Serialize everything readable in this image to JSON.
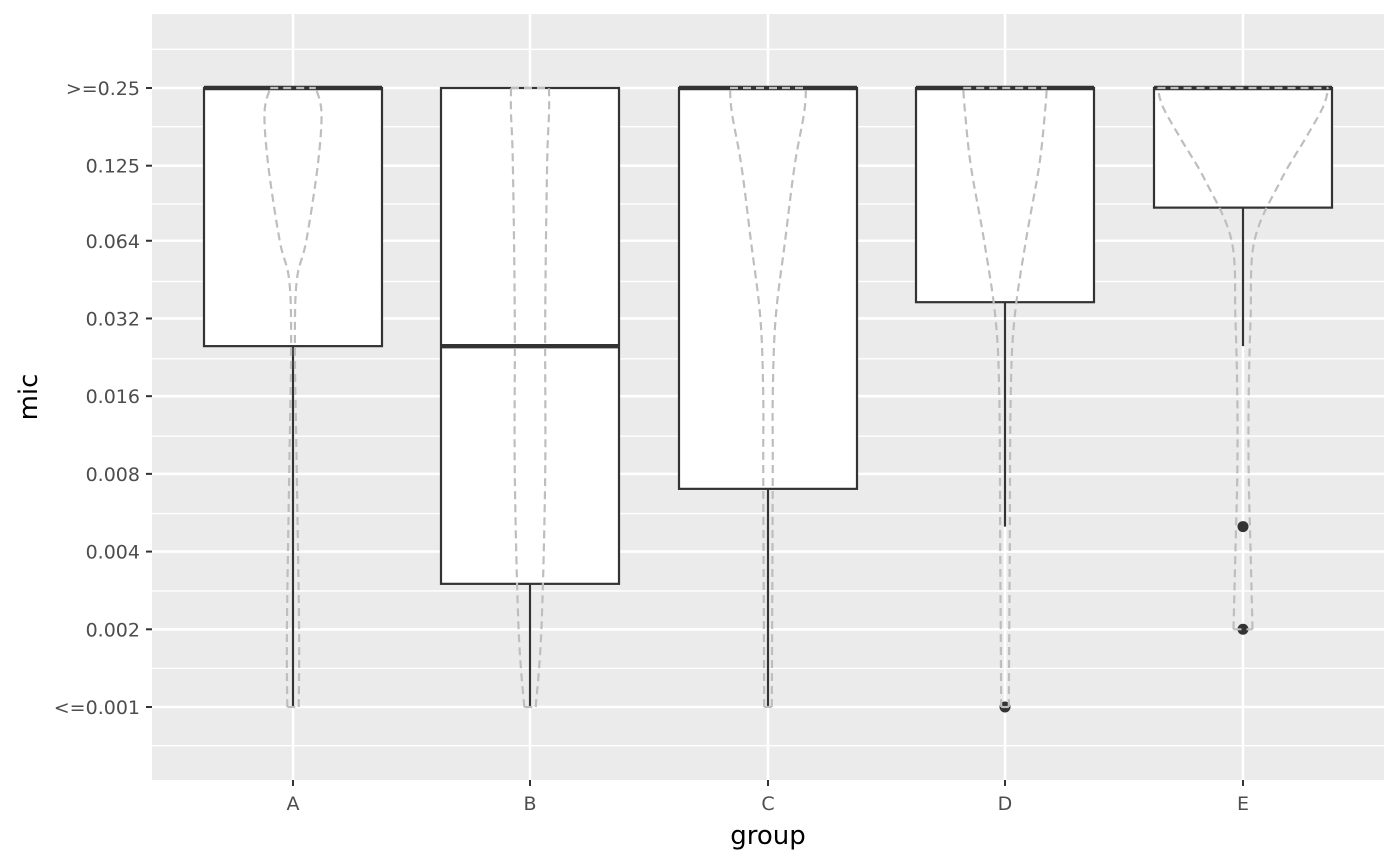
{
  "chart_data": {
    "type": "boxplot",
    "xlabel": "group",
    "ylabel": "mic",
    "categories": [
      "A",
      "B",
      "C",
      "D",
      "E"
    ],
    "y_tick_labels": [
      "<=0.001",
      "0.002",
      "0.004",
      "0.008",
      "0.016",
      "0.032",
      "0.064",
      "0.125",
      ">=0.25"
    ],
    "y_scale": "log2",
    "y_tick_values": [
      0.001,
      0.002,
      0.004,
      0.008,
      0.016,
      0.032,
      0.064,
      0.125,
      0.25
    ],
    "ylim": [
      0.0006,
      0.5
    ],
    "grid": true,
    "boxes": [
      {
        "group": "A",
        "lower_whisker": 0.001,
        "q1": 0.025,
        "median": 0.25,
        "q3": 0.25,
        "upper_whisker": 0.25,
        "outliers": []
      },
      {
        "group": "B",
        "lower_whisker": 0.001,
        "q1": 0.003,
        "median": 0.025,
        "q3": 0.25,
        "upper_whisker": 0.25,
        "outliers": []
      },
      {
        "group": "C",
        "lower_whisker": 0.001,
        "q1": 0.007,
        "median": 0.25,
        "q3": 0.25,
        "upper_whisker": 0.25,
        "outliers": []
      },
      {
        "group": "D",
        "lower_whisker": 0.005,
        "q1": 0.037,
        "median": 0.25,
        "q3": 0.25,
        "upper_whisker": 0.25,
        "outliers": [
          0.001
        ]
      },
      {
        "group": "E",
        "lower_whisker": 0.025,
        "q1": 0.086,
        "median": 0.25,
        "q3": 0.25,
        "upper_whisker": 0.25,
        "outliers": [
          0.005,
          0.002
        ]
      }
    ],
    "violins": [
      {
        "group": "A",
        "profile": [
          [
            0.001,
            0.03
          ],
          [
            0.002,
            0.032
          ],
          [
            0.008,
            0.02
          ],
          [
            0.025,
            0.01
          ],
          [
            0.045,
            0.02
          ],
          [
            0.064,
            0.07
          ],
          [
            0.125,
            0.13
          ],
          [
            0.2,
            0.15
          ],
          [
            0.25,
            0.12
          ]
        ]
      },
      {
        "group": "B",
        "profile": [
          [
            0.001,
            0.03
          ],
          [
            0.002,
            0.06
          ],
          [
            0.008,
            0.08
          ],
          [
            0.032,
            0.08
          ],
          [
            0.125,
            0.09
          ],
          [
            0.2,
            0.1
          ],
          [
            0.25,
            0.1
          ]
        ]
      },
      {
        "group": "C",
        "profile": [
          [
            0.001,
            0.02
          ],
          [
            0.008,
            0.025
          ],
          [
            0.016,
            0.025
          ],
          [
            0.032,
            0.04
          ],
          [
            0.064,
            0.09
          ],
          [
            0.125,
            0.14
          ],
          [
            0.2,
            0.19
          ],
          [
            0.25,
            0.2
          ]
        ]
      },
      {
        "group": "D",
        "profile": [
          [
            0.001,
            0.02
          ],
          [
            0.004,
            0.025
          ],
          [
            0.016,
            0.03
          ],
          [
            0.032,
            0.05
          ],
          [
            0.064,
            0.11
          ],
          [
            0.125,
            0.18
          ],
          [
            0.2,
            0.21
          ],
          [
            0.25,
            0.22
          ]
        ]
      },
      {
        "group": "E",
        "profile": [
          [
            0.002,
            0.05
          ],
          [
            0.004,
            0.04
          ],
          [
            0.008,
            0.03
          ],
          [
            0.016,
            0.03
          ],
          [
            0.032,
            0.04
          ],
          [
            0.064,
            0.06
          ],
          [
            0.11,
            0.2
          ],
          [
            0.16,
            0.33
          ],
          [
            0.21,
            0.42
          ],
          [
            0.25,
            0.45
          ]
        ]
      }
    ],
    "colors": {
      "panel_background": "#ebebeb",
      "grid": "#ffffff",
      "box_fill": "#ffffff",
      "box_line": "#333333",
      "violin_line": "#bebebe",
      "tick_text": "#4d4d4d",
      "axis_title": "#000000"
    }
  }
}
